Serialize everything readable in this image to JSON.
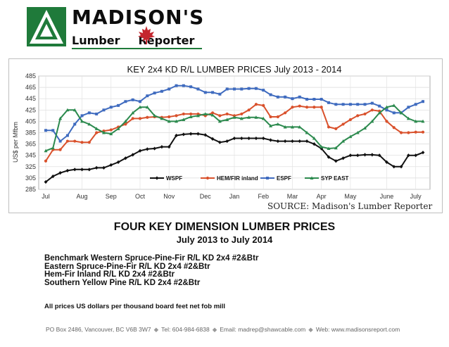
{
  "header": {
    "logo_title": "MADISON'S",
    "logo_sub_left": "Lumber",
    "logo_sub_right": "Reporter"
  },
  "chart_data": {
    "type": "line",
    "title": "KEY 2x4 KD R/L LUMBER PRICES July 2013 - 2014",
    "ylabel": "US$ per Mfbm",
    "xlabel": "",
    "ylim": [
      285,
      485
    ],
    "yticks": [
      285,
      305,
      325,
      345,
      365,
      385,
      405,
      425,
      445,
      465,
      485
    ],
    "x_ticks": [
      {
        "label": "Jul",
        "i": 0
      },
      {
        "label": "Aug",
        "i": 5
      },
      {
        "label": "Sep",
        "i": 9
      },
      {
        "label": "Oct",
        "i": 13
      },
      {
        "label": "Nov",
        "i": 17
      },
      {
        "label": "Dec",
        "i": 22
      },
      {
        "label": "Jan",
        "i": 26
      },
      {
        "label": "Feb",
        "i": 30
      },
      {
        "label": "Mar",
        "i": 34
      },
      {
        "label": "Apr",
        "i": 38
      },
      {
        "label": "May",
        "i": 42
      },
      {
        "label": "June",
        "i": 47
      },
      {
        "label": "July",
        "i": 51
      }
    ],
    "grid": true,
    "legend_position": "bottom",
    "series": [
      {
        "name": "WSPF",
        "color": "#111111",
        "marker": "diamond",
        "values": [
          298,
          308,
          314,
          318,
          320,
          320,
          320,
          323,
          323,
          328,
          333,
          340,
          346,
          353,
          356,
          357,
          360,
          360,
          380,
          382,
          383,
          383,
          381,
          374,
          368,
          370,
          375,
          375,
          375,
          375,
          375,
          372,
          370,
          370,
          370,
          370,
          370,
          365,
          357,
          342,
          335,
          340,
          345,
          345,
          346,
          346,
          345,
          333,
          325,
          325,
          345,
          345,
          350
        ]
      },
      {
        "name": "HEM/FIR inland",
        "color": "#d9512c",
        "marker": "circle",
        "values": [
          335,
          355,
          355,
          370,
          370,
          368,
          368,
          385,
          388,
          390,
          395,
          400,
          410,
          410,
          412,
          413,
          412,
          413,
          415,
          418,
          418,
          418,
          415,
          420,
          415,
          418,
          415,
          418,
          425,
          435,
          433,
          413,
          413,
          420,
          430,
          432,
          430,
          430,
          430,
          395,
          392,
          400,
          408,
          415,
          418,
          425,
          423,
          405,
          394,
          385,
          385,
          386,
          386
        ]
      },
      {
        "name": "ESPF",
        "color": "#3f6bbf",
        "marker": "square",
        "values": [
          389,
          389,
          370,
          380,
          400,
          415,
          420,
          418,
          425,
          430,
          433,
          440,
          443,
          440,
          450,
          455,
          458,
          462,
          468,
          468,
          466,
          462,
          456,
          456,
          453,
          462,
          462,
          462,
          463,
          463,
          460,
          452,
          448,
          448,
          445,
          448,
          444,
          444,
          444,
          438,
          435,
          435,
          435,
          435,
          435,
          437,
          432,
          425,
          420,
          420,
          430,
          435,
          440
        ]
      },
      {
        "name": "SYP EAST",
        "color": "#2c8a4e",
        "marker": "triangle",
        "values": [
          353,
          358,
          410,
          425,
          425,
          405,
          400,
          392,
          385,
          383,
          392,
          405,
          420,
          430,
          430,
          415,
          410,
          405,
          405,
          408,
          413,
          415,
          418,
          416,
          405,
          408,
          412,
          410,
          412,
          412,
          410,
          397,
          400,
          395,
          395,
          395,
          385,
          375,
          360,
          357,
          358,
          370,
          378,
          385,
          393,
          405,
          420,
          430,
          433,
          420,
          410,
          405,
          405
        ]
      }
    ]
  },
  "chart_meta": {
    "source_note": "SOURCE: Madison's Lumber Reporter"
  },
  "main": {
    "title": "FOUR KEY DIMENSION LUMBER PRICES",
    "date_range": "July 2013 to July 2014",
    "series_list": [
      "Benchmark Western Spruce-Pine-Fir R/L KD 2x4 #2&Btr",
      "Eastern Spruce-Pine-Fir R/L KD 2x4 #2&Btr",
      "Hem-Fir Inland R/L KD 2x4 #2&Btr",
      "Southern Yellow Pine R/L KD 2x4 #2&Btr"
    ],
    "note": "All prices US dollars per thousand board feet net fob mill"
  },
  "footer": {
    "address": "PO Box 2486, Vancouver, BC   V6B 3W7",
    "tel": "Tel: 604-984-6838",
    "email": "Email: madrep@shawcable.com",
    "web": "Web: www.madisonsreport.com"
  }
}
